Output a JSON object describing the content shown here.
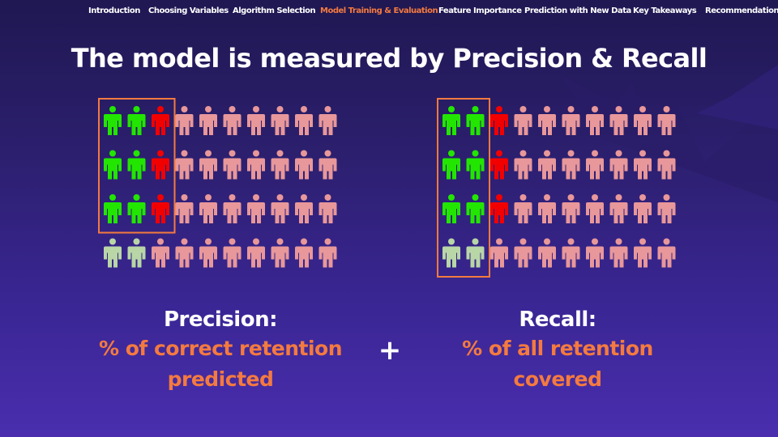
{
  "nav": {
    "items": [
      {
        "label": "Introduction"
      },
      {
        "label": "Choosing Variables"
      },
      {
        "label": "Algorithm Selection"
      },
      {
        "label": "Model Training & Evaluation",
        "active": true
      },
      {
        "label": "Feature Importance"
      },
      {
        "label": "Prediction with New Data"
      },
      {
        "label": "Key Takeaways"
      },
      {
        "label": "Recommendations"
      }
    ]
  },
  "title": "The model is measured by Precision & Recall",
  "precision": {
    "label": "Precision:",
    "description_line1": "% of correct retention",
    "description_line2": "predicted",
    "grid": {
      "rows": [
        [
          "g",
          "g",
          "r",
          "p",
          "p",
          "p",
          "p",
          "p",
          "p",
          "p"
        ],
        [
          "g",
          "g",
          "r",
          "p",
          "p",
          "p",
          "p",
          "p",
          "p",
          "p"
        ],
        [
          "g",
          "g",
          "r",
          "p",
          "p",
          "p",
          "p",
          "p",
          "p",
          "p"
        ],
        [
          "l",
          "l",
          "p",
          "p",
          "p",
          "p",
          "p",
          "p",
          "p",
          "p"
        ]
      ],
      "highlight": "first 3 columns, first 3 rows"
    }
  },
  "recall": {
    "label": "Recall:",
    "description_line1": "% of all retention",
    "description_line2": "covered",
    "grid": {
      "rows": [
        [
          "g",
          "g",
          "r",
          "p",
          "p",
          "p",
          "p",
          "p",
          "p",
          "p"
        ],
        [
          "g",
          "g",
          "r",
          "p",
          "p",
          "p",
          "p",
          "p",
          "p",
          "p"
        ],
        [
          "g",
          "g",
          "r",
          "p",
          "p",
          "p",
          "p",
          "p",
          "p",
          "p"
        ],
        [
          "l",
          "l",
          "p",
          "p",
          "p",
          "p",
          "p",
          "p",
          "p",
          "p"
        ]
      ],
      "highlight": "first 2 columns, all 4 rows"
    }
  },
  "operator": "+",
  "colors": {
    "true_positive": "#22e600",
    "false_positive": "#f20000",
    "false_negative": "#b9d6a7",
    "negative": "#e8979a",
    "highlight_border": "#f47a3f",
    "accent": "#f47a3f",
    "text": "#ffffff"
  },
  "icons": {
    "person": "person-icon",
    "operator": "plus-icon"
  }
}
